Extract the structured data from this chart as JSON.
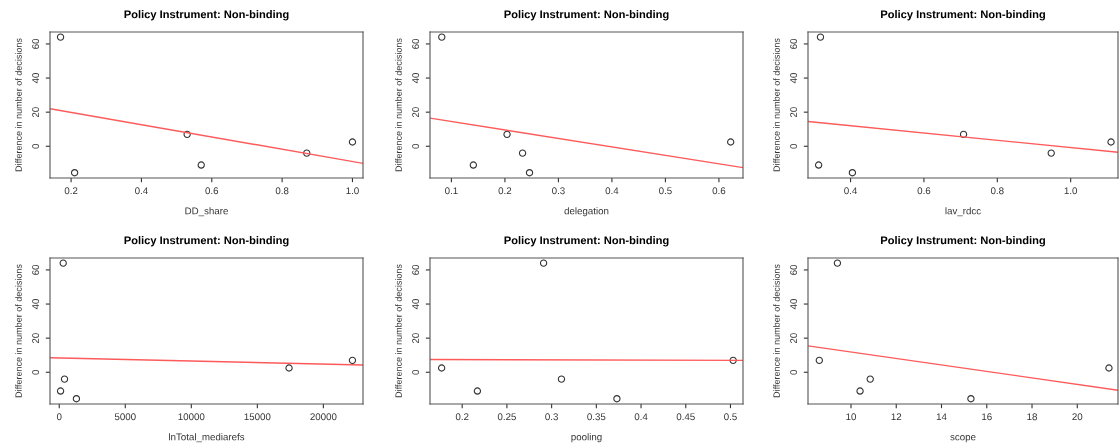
{
  "chart_data": [
    {
      "type": "scatter",
      "title": "Policy Instrument: Non-binding",
      "xlabel": "DD_share",
      "ylabel": "Difference in number of decisions",
      "xlim": [
        0.14,
        1.03
      ],
      "ylim": [
        -18.6,
        67
      ],
      "xticks": [
        0.2,
        0.4,
        0.6,
        0.8,
        {
          "value": 1,
          "label": "1.0"
        }
      ],
      "yticks": [
        0,
        20,
        40,
        60
      ],
      "grid": false,
      "legend": false,
      "series": [
        {
          "marker": "circle",
          "color": "#333333",
          "x": [
            0.17,
            0.21,
            0.53,
            0.57,
            0.87,
            1.0
          ],
          "values": [
            64,
            -15.5,
            7,
            -11,
            -4,
            2.5
          ]
        },
        {
          "type": "line",
          "marker": "none",
          "color": "#ff5a5a",
          "x": [
            0.14,
            1.03
          ],
          "values": [
            22,
            -10
          ]
        }
      ]
    },
    {
      "type": "scatter",
      "title": "Policy Instrument: Non-binding",
      "xlabel": "delegation",
      "ylabel": "Difference in number of decisions",
      "xlim": [
        0.06,
        0.645
      ],
      "ylim": [
        -18.6,
        67
      ],
      "xticks": [
        0.1,
        0.2,
        0.3,
        0.4,
        0.5,
        0.6
      ],
      "yticks": [
        0,
        20,
        40,
        60
      ],
      "grid": false,
      "legend": false,
      "series": [
        {
          "marker": "circle",
          "color": "#333333",
          "x": [
            0.082,
            0.141,
            0.204,
            0.233,
            0.246,
            0.622
          ],
          "values": [
            64,
            -11,
            7,
            -4,
            -15.5,
            2.5
          ]
        },
        {
          "type": "line",
          "marker": "none",
          "color": "#ff5a5a",
          "x": [
            0.06,
            0.645
          ],
          "values": [
            16.5,
            -12.5
          ]
        }
      ]
    },
    {
      "type": "scatter",
      "title": "Policy Instrument: Non-binding",
      "xlabel": "lav_rdcc",
      "ylabel": "Difference in number of decisions",
      "xlim": [
        0.284,
        1.129
      ],
      "ylim": [
        -18.6,
        67
      ],
      "xticks": [
        0.4,
        0.6,
        0.8,
        {
          "value": 1,
          "label": "1.0"
        }
      ],
      "yticks": [
        0,
        20,
        40,
        60
      ],
      "grid": false,
      "legend": false,
      "series": [
        {
          "marker": "circle",
          "color": "#333333",
          "x": [
            0.318,
            0.313,
            0.405,
            0.708,
            0.947,
            1.11
          ],
          "values": [
            64,
            -11,
            -15.5,
            7,
            -4,
            2.5
          ]
        },
        {
          "type": "line",
          "marker": "none",
          "color": "#ff5a5a",
          "x": [
            0.284,
            1.129
          ],
          "values": [
            14.5,
            -3.5
          ]
        }
      ]
    },
    {
      "type": "scatter",
      "title": "Policy Instrument: Non-binding",
      "xlabel": "lnTotal_mediarefs",
      "ylabel": "Difference in number of decisions",
      "xlim": [
        -700,
        23000
      ],
      "ylim": [
        -18.6,
        67
      ],
      "xticks": [
        0,
        5000,
        10000,
        15000,
        20000
      ],
      "yticks": [
        0,
        20,
        40,
        60
      ],
      "grid": false,
      "legend": false,
      "series": [
        {
          "marker": "circle",
          "color": "#333333",
          "x": [
            100,
            300,
            400,
            1300,
            17400,
            22200
          ],
          "values": [
            -11,
            64,
            -4,
            -15.5,
            2.5,
            7
          ]
        },
        {
          "type": "line",
          "marker": "none",
          "color": "#ff5a5a",
          "x": [
            -700,
            23000
          ],
          "values": [
            8.5,
            4.3
          ]
        }
      ]
    },
    {
      "type": "scatter",
      "title": "Policy Instrument: Non-binding",
      "xlabel": "pooling",
      "ylabel": "Difference in number of decisions",
      "xlim": [
        0.164,
        0.514
      ],
      "ylim": [
        -18.6,
        67
      ],
      "xticks": [
        0.2,
        0.25,
        0.3,
        0.35,
        0.4,
        0.45,
        0.5
      ],
      "yticks": [
        0,
        20,
        40,
        60
      ],
      "grid": false,
      "legend": false,
      "series": [
        {
          "marker": "circle",
          "color": "#333333",
          "x": [
            0.177,
            0.217,
            0.291,
            0.311,
            0.373,
            0.503
          ],
          "values": [
            2.5,
            -11,
            64,
            -4,
            -15.5,
            7
          ]
        },
        {
          "type": "line",
          "marker": "none",
          "color": "#ff5a5a",
          "x": [
            0.164,
            0.514
          ],
          "values": [
            7.5,
            7.0
          ]
        }
      ]
    },
    {
      "type": "scatter",
      "title": "Policy Instrument: Non-binding",
      "xlabel": "scope",
      "ylabel": "Difference in number of decisions",
      "xlim": [
        8.1,
        21.8
      ],
      "ylim": [
        -18.6,
        67
      ],
      "xticks": [
        10,
        12,
        14,
        16,
        18,
        20
      ],
      "yticks": [
        0,
        20,
        40,
        60
      ],
      "grid": false,
      "legend": false,
      "series": [
        {
          "marker": "circle",
          "color": "#333333",
          "x": [
            8.6,
            9.4,
            10.4,
            10.85,
            15.3,
            21.4
          ],
          "values": [
            7,
            64,
            -11,
            -4,
            -15.5,
            2.5
          ]
        },
        {
          "type": "line",
          "marker": "none",
          "color": "#ff5a5a",
          "x": [
            8.1,
            21.8
          ],
          "values": [
            15.5,
            -10.5
          ]
        }
      ]
    }
  ]
}
